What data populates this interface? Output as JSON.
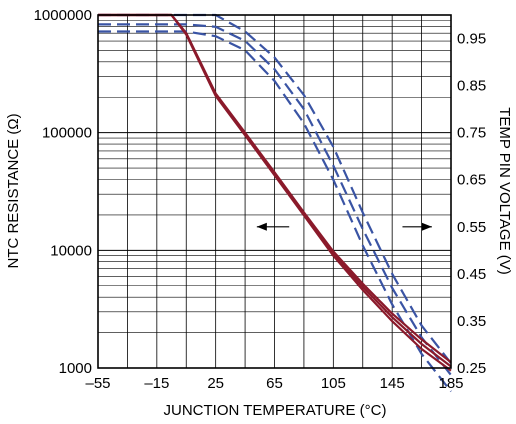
{
  "chart_data": {
    "type": "line",
    "xlabel": "JUNCTION TEMPERATURE (°C)",
    "ylabel_left": "NTC RESISTANCE (Ω)",
    "ylabel_right": "TEMP PIN VOLTAGE (V)",
    "xlim": [
      -55,
      185
    ],
    "x_ticks": [
      -55,
      -15,
      25,
      65,
      105,
      145,
      185
    ],
    "x_tick_labels": [
      "–55",
      "–15",
      "25",
      "65",
      "105",
      "145",
      "185"
    ],
    "ylim_left": [
      1000,
      1000000
    ],
    "y_scale_left": "log",
    "y_ticks_left": [
      1000,
      10000,
      100000,
      1000000
    ],
    "y_tick_labels_left": [
      "1000",
      "10000",
      "100000",
      "1000000"
    ],
    "ylim_right": [
      0.25,
      1.0
    ],
    "y_ticks_right": [
      0.25,
      0.35,
      0.45,
      0.55,
      0.65,
      0.75,
      0.85,
      0.95
    ],
    "y_tick_labels_right": [
      "0.25",
      "0.35",
      "0.45",
      "0.55",
      "0.65",
      "0.75",
      "0.85",
      "0.95"
    ],
    "grid": true,
    "colors": {
      "resistance": "#8b1a2b",
      "voltage": "#3a54a4"
    },
    "resistance_series": [
      {
        "x": [
          -55,
          -5,
          5,
          25,
          45,
          65,
          85,
          105,
          125,
          145,
          165,
          185
        ],
        "y": [
          1000000,
          1000000,
          700000,
          215000,
          100000,
          46000,
          21000,
          9800,
          5200,
          2900,
          1750,
          1120
        ]
      },
      {
        "x": [
          -55,
          -5,
          5,
          25,
          45,
          65,
          85,
          105,
          125,
          145,
          165,
          185
        ],
        "y": [
          1000000,
          1000000,
          690000,
          210000,
          97000,
          44500,
          20300,
          9400,
          4900,
          2700,
          1600,
          1030
        ]
      },
      {
        "x": [
          -55,
          -5,
          5,
          25,
          45,
          65,
          85,
          105,
          125,
          145,
          165,
          185
        ],
        "y": [
          1000000,
          1000000,
          680000,
          205000,
          95000,
          43500,
          19800,
          9000,
          4600,
          2500,
          1450,
          950
        ]
      }
    ],
    "voltage_series": [
      {
        "x": [
          -55,
          -15,
          15,
          25,
          45,
          65,
          85,
          105,
          125,
          145,
          165,
          185
        ],
        "y": [
          1.0,
          1.0,
          1.0,
          1.0,
          0.965,
          0.91,
          0.83,
          0.72,
          0.58,
          0.45,
          0.34,
          0.26
        ]
      },
      {
        "x": [
          -55,
          -15,
          5,
          25,
          45,
          65,
          85,
          105,
          125,
          145,
          165,
          185
        ],
        "y": [
          0.98,
          0.98,
          0.98,
          0.975,
          0.945,
          0.885,
          0.8,
          0.68,
          0.545,
          0.42,
          0.315,
          0.235
        ]
      },
      {
        "x": [
          -55,
          -15,
          5,
          25,
          45,
          65,
          85,
          105,
          125,
          145,
          165,
          185
        ],
        "y": [
          0.965,
          0.965,
          0.965,
          0.955,
          0.925,
          0.86,
          0.77,
          0.65,
          0.51,
          0.385,
          0.28,
          0.2
        ]
      }
    ],
    "annotations": [
      {
        "type": "arrow",
        "direction": "left",
        "points_to": "ylabel_left",
        "x_from": 75,
        "x_to": 53,
        "y_value": 0.55
      },
      {
        "type": "arrow",
        "direction": "right",
        "points_to": "ylabel_right",
        "x_from": 152,
        "x_to": 172,
        "y_value": 0.55
      }
    ]
  }
}
